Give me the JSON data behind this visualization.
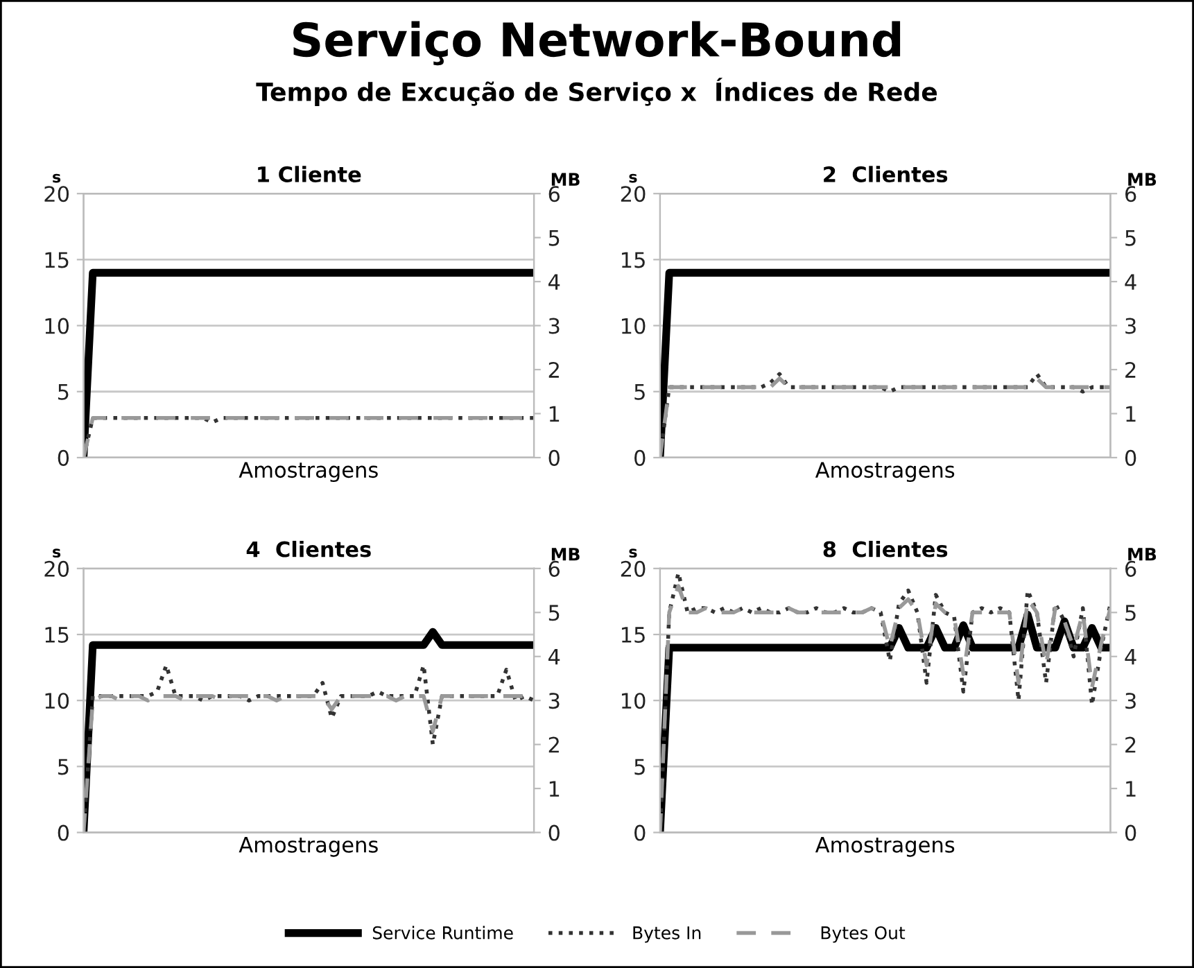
{
  "chart_data": [
    {
      "type": "line",
      "title": "1 Cliente",
      "annotations": [
        "Serviço Network-Bound",
        "Tempo de Excução de Serviço x  Índices de Rede"
      ],
      "xlabel": "Amostragens",
      "ylabel": "s",
      "y2label": "MB",
      "categories": [
        null,
        null,
        null,
        null,
        null,
        null,
        null,
        null,
        null,
        null,
        null,
        null,
        null,
        null,
        null,
        null,
        null,
        null,
        null,
        null,
        null,
        null,
        null,
        null,
        null,
        null,
        null,
        null,
        null,
        null,
        null,
        null,
        null,
        null,
        null,
        null,
        null,
        null,
        null,
        null,
        null,
        null,
        null,
        null,
        null,
        null,
        null,
        null,
        null,
        null
      ],
      "ylim": [
        0,
        20
      ],
      "yticks": [
        0,
        5,
        10,
        15,
        20
      ],
      "y2lim": [
        0,
        6
      ],
      "y2ticks": [
        0,
        1,
        2,
        3,
        4,
        5,
        6
      ],
      "grid": "y",
      "tick_labels": "y",
      "marker": "none",
      "series": [
        {
          "color": "#000000",
          "line_style": "solid",
          "values": [
            0,
            14,
            14,
            14,
            14,
            14,
            14,
            14,
            14,
            14,
            14,
            14,
            14,
            14,
            14,
            14,
            14,
            14,
            14,
            14,
            14,
            14,
            14,
            14,
            14,
            14,
            14,
            14,
            14,
            14,
            14,
            14,
            14,
            14,
            14,
            14,
            14,
            14,
            14,
            14,
            14,
            14,
            14,
            14,
            14,
            14,
            14,
            14,
            14,
            14
          ]
        },
        {
          "color": "#333333",
          "line_style": "dotted",
          "axis": "y2",
          "values": [
            0,
            0.9,
            0.9,
            0.9,
            0.9,
            0.9,
            0.9,
            0.9,
            0.9,
            0.9,
            0.9,
            0.9,
            0.9,
            0.9,
            0.8,
            0.9,
            0.9,
            0.9,
            0.9,
            0.9,
            0.9,
            0.9,
            0.9,
            0.9,
            0.9,
            0.9,
            0.9,
            0.9,
            0.9,
            0.9,
            0.9,
            0.9,
            0.9,
            0.9,
            0.9,
            0.9,
            0.9,
            0.9,
            0.9,
            0.9,
            0.9,
            0.9,
            0.9,
            0.9,
            0.9,
            0.9,
            0.9,
            0.9,
            0.9,
            0.9
          ]
        },
        {
          "color": "#999999",
          "line_style": "dashed",
          "axis": "y2",
          "values": [
            0,
            0.9,
            0.9,
            0.9,
            0.9,
            0.9,
            0.9,
            0.9,
            0.9,
            0.9,
            0.9,
            0.9,
            0.9,
            0.9,
            0.9,
            0.9,
            0.9,
            0.9,
            0.9,
            0.9,
            0.9,
            0.9,
            0.9,
            0.9,
            0.9,
            0.9,
            0.9,
            0.9,
            0.9,
            0.9,
            0.9,
            0.9,
            0.9,
            0.9,
            0.9,
            0.9,
            0.9,
            0.9,
            0.9,
            0.9,
            0.9,
            0.9,
            0.9,
            0.9,
            0.9,
            0.9,
            0.9,
            0.9,
            0.9,
            0.9
          ]
        }
      ]
    },
    {
      "type": "line",
      "title": "2  Clientes",
      "xlabel": "Amostragens",
      "ylabel": "s",
      "y2label": "MB",
      "categories": [
        null,
        null,
        null,
        null,
        null,
        null,
        null,
        null,
        null,
        null,
        null,
        null,
        null,
        null,
        null,
        null,
        null,
        null,
        null,
        null,
        null,
        null,
        null,
        null,
        null,
        null,
        null,
        null,
        null,
        null,
        null,
        null,
        null,
        null,
        null,
        null,
        null,
        null,
        null,
        null,
        null,
        null,
        null,
        null,
        null,
        null,
        null,
        null,
        null,
        null
      ],
      "ylim": [
        0,
        20
      ],
      "yticks": [
        0,
        5,
        10,
        15,
        20
      ],
      "y2lim": [
        0,
        6
      ],
      "y2ticks": [
        0,
        1,
        2,
        3,
        4,
        5,
        6
      ],
      "grid": "y",
      "tick_labels": "y",
      "marker": "none",
      "series": [
        {
          "color": "#000000",
          "line_style": "solid",
          "values": [
            0,
            14,
            14,
            14,
            14,
            14,
            14,
            14,
            14,
            14,
            14,
            14,
            14,
            14,
            14,
            14,
            14,
            14,
            14,
            14,
            14,
            14,
            14,
            14,
            14,
            14,
            14,
            14,
            14,
            14,
            14,
            14,
            14,
            14,
            14,
            14,
            14,
            14,
            14,
            14,
            14,
            14,
            14,
            14,
            14,
            14,
            14,
            14,
            14,
            14
          ]
        },
        {
          "color": "#333333",
          "line_style": "dotted",
          "axis": "y2",
          "values": [
            0,
            1.6,
            1.6,
            1.6,
            1.6,
            1.6,
            1.6,
            1.6,
            1.6,
            1.6,
            1.6,
            1.6,
            1.7,
            1.9,
            1.6,
            1.6,
            1.6,
            1.6,
            1.6,
            1.6,
            1.6,
            1.6,
            1.6,
            1.6,
            1.6,
            1.5,
            1.6,
            1.6,
            1.6,
            1.6,
            1.6,
            1.6,
            1.6,
            1.6,
            1.6,
            1.6,
            1.6,
            1.6,
            1.6,
            1.6,
            1.6,
            1.9,
            1.6,
            1.6,
            1.6,
            1.6,
            1.5,
            1.6,
            1.6,
            1.6
          ]
        },
        {
          "color": "#999999",
          "line_style": "dashed",
          "axis": "y2",
          "values": [
            0,
            1.6,
            1.6,
            1.6,
            1.6,
            1.6,
            1.6,
            1.6,
            1.6,
            1.6,
            1.6,
            1.6,
            1.6,
            1.8,
            1.6,
            1.6,
            1.6,
            1.6,
            1.6,
            1.6,
            1.6,
            1.6,
            1.6,
            1.6,
            1.6,
            1.6,
            1.6,
            1.6,
            1.6,
            1.6,
            1.6,
            1.6,
            1.6,
            1.6,
            1.6,
            1.6,
            1.6,
            1.6,
            1.6,
            1.6,
            1.6,
            1.8,
            1.6,
            1.6,
            1.6,
            1.6,
            1.6,
            1.6,
            1.6,
            1.6
          ]
        }
      ]
    },
    {
      "type": "line",
      "title": "4  Clientes",
      "xlabel": "Amostragens",
      "ylabel": "s",
      "y2label": "MB",
      "categories": [
        null,
        null,
        null,
        null,
        null,
        null,
        null,
        null,
        null,
        null,
        null,
        null,
        null,
        null,
        null,
        null,
        null,
        null,
        null,
        null,
        null,
        null,
        null,
        null,
        null,
        null,
        null,
        null,
        null,
        null,
        null,
        null,
        null,
        null,
        null,
        null,
        null,
        null,
        null,
        null,
        null,
        null,
        null,
        null,
        null,
        null,
        null,
        null,
        null,
        null
      ],
      "ylim": [
        0,
        20
      ],
      "yticks": [
        0,
        5,
        10,
        15,
        20
      ],
      "y2lim": [
        0,
        6
      ],
      "y2ticks": [
        0,
        1,
        2,
        3,
        4,
        5,
        6
      ],
      "grid": "y",
      "tick_labels": "y",
      "marker": "none",
      "series": [
        {
          "color": "#000000",
          "line_style": "solid",
          "values": [
            0,
            14.2,
            14.2,
            14.2,
            14.2,
            14.2,
            14.2,
            14.2,
            14.2,
            14.2,
            14.2,
            14.2,
            14.2,
            14.2,
            14.2,
            14.2,
            14.2,
            14.2,
            14.2,
            14.2,
            14.2,
            14.2,
            14.2,
            14.2,
            14.2,
            14.2,
            14.2,
            14.2,
            14.2,
            14.2,
            14.2,
            14.2,
            14.2,
            14.2,
            14.2,
            14.2,
            14.2,
            14.2,
            15.2,
            14.2,
            14.2,
            14.2,
            14.2,
            14.2,
            14.2,
            14.2,
            14.2,
            14.2,
            14.2,
            14.2
          ]
        },
        {
          "color": "#333333",
          "line_style": "dotted",
          "axis": "y2",
          "values": [
            0,
            3.1,
            3.1,
            3.1,
            3.1,
            3.1,
            3.1,
            3.1,
            3.2,
            3.8,
            3.1,
            3.1,
            3.1,
            3.0,
            3.1,
            3.1,
            3.1,
            3.1,
            3.0,
            3.1,
            3.1,
            3.1,
            3.1,
            3.1,
            3.1,
            3.1,
            3.4,
            2.6,
            3.1,
            3.1,
            3.1,
            3.1,
            3.2,
            3.1,
            3.1,
            3.1,
            3.1,
            3.8,
            2.0,
            3.1,
            3.1,
            3.1,
            3.1,
            3.1,
            3.1,
            3.1,
            3.7,
            3.0,
            3.1,
            3.0
          ]
        },
        {
          "color": "#999999",
          "line_style": "dashed",
          "axis": "y2",
          "values": [
            0,
            3.0,
            3.1,
            3.1,
            3.0,
            3.1,
            3.1,
            3.0,
            3.1,
            3.1,
            3.1,
            3.0,
            3.1,
            3.1,
            3.1,
            3.0,
            3.1,
            3.1,
            3.1,
            3.1,
            3.1,
            3.0,
            3.1,
            3.1,
            3.1,
            3.1,
            3.1,
            2.8,
            3.1,
            3.1,
            3.1,
            3.1,
            3.1,
            3.1,
            3.0,
            3.1,
            3.1,
            3.1,
            2.3,
            3.1,
            3.1,
            3.1,
            3.1,
            3.1,
            3.1,
            3.1,
            3.1,
            3.1,
            3.1,
            3.1
          ]
        }
      ]
    },
    {
      "type": "line",
      "title": "8  Clientes",
      "xlabel": "Amostragens",
      "ylabel": "s",
      "y2label": "MB",
      "categories": [
        null,
        null,
        null,
        null,
        null,
        null,
        null,
        null,
        null,
        null,
        null,
        null,
        null,
        null,
        null,
        null,
        null,
        null,
        null,
        null,
        null,
        null,
        null,
        null,
        null,
        null,
        null,
        null,
        null,
        null,
        null,
        null,
        null,
        null,
        null,
        null,
        null,
        null,
        null,
        null,
        null,
        null,
        null,
        null,
        null,
        null,
        null,
        null,
        null,
        null
      ],
      "ylim": [
        0,
        20
      ],
      "yticks": [
        0,
        5,
        10,
        15,
        20
      ],
      "y2lim": [
        0,
        6
      ],
      "y2ticks": [
        0,
        1,
        2,
        3,
        4,
        5,
        6
      ],
      "grid": "y",
      "tick_labels": "y",
      "marker": "none",
      "legend": "bottom",
      "series": [
        {
          "name": "Service Runtime",
          "color": "#000000",
          "line_style": "solid",
          "values": [
            0,
            14,
            14,
            14,
            14,
            14,
            14,
            14,
            14,
            14,
            14,
            14,
            14,
            14,
            14,
            14,
            14,
            14,
            14,
            14,
            14,
            14,
            14,
            14,
            14,
            14,
            15.5,
            14,
            14,
            14,
            15.5,
            14,
            14,
            15.7,
            14,
            14,
            14,
            14,
            14,
            14,
            16.5,
            14,
            14,
            14,
            16,
            14,
            14,
            15.5,
            14,
            14
          ]
        },
        {
          "name": "Bytes In",
          "color": "#333333",
          "line_style": "dotted",
          "axis": "y2",
          "values": [
            0,
            5.0,
            5.9,
            5.0,
            5.1,
            5.1,
            5.0,
            5.1,
            5.0,
            5.1,
            5.0,
            5.1,
            5.0,
            5.0,
            5.1,
            5.0,
            5.0,
            5.1,
            5.0,
            5.0,
            5.1,
            5.0,
            5.0,
            5.1,
            5.0,
            3.9,
            5.2,
            5.5,
            5.0,
            3.4,
            5.4,
            5.0,
            4.9,
            3.2,
            5.0,
            5.1,
            5.0,
            5.1,
            5.0,
            3.0,
            5.5,
            5.0,
            3.4,
            5.2,
            4.8,
            4.0,
            5.1,
            2.9,
            4.2,
            5.2
          ]
        },
        {
          "name": "Bytes Out",
          "color": "#999999",
          "line_style": "dashed",
          "axis": "y2",
          "values": [
            0,
            5.0,
            5.6,
            5.0,
            5.0,
            5.1,
            5.0,
            5.0,
            5.0,
            5.1,
            5.0,
            5.0,
            5.0,
            5.0,
            5.1,
            5.0,
            5.0,
            5.0,
            5.0,
            5.0,
            5.0,
            5.0,
            5.0,
            5.1,
            5.0,
            4.2,
            5.1,
            5.3,
            5.0,
            3.8,
            5.2,
            5.0,
            4.9,
            3.6,
            5.0,
            5.0,
            5.0,
            5.0,
            5.0,
            3.4,
            5.3,
            5.0,
            3.8,
            5.1,
            4.8,
            4.2,
            5.0,
            3.3,
            4.3,
            5.1
          ]
        }
      ]
    }
  ]
}
